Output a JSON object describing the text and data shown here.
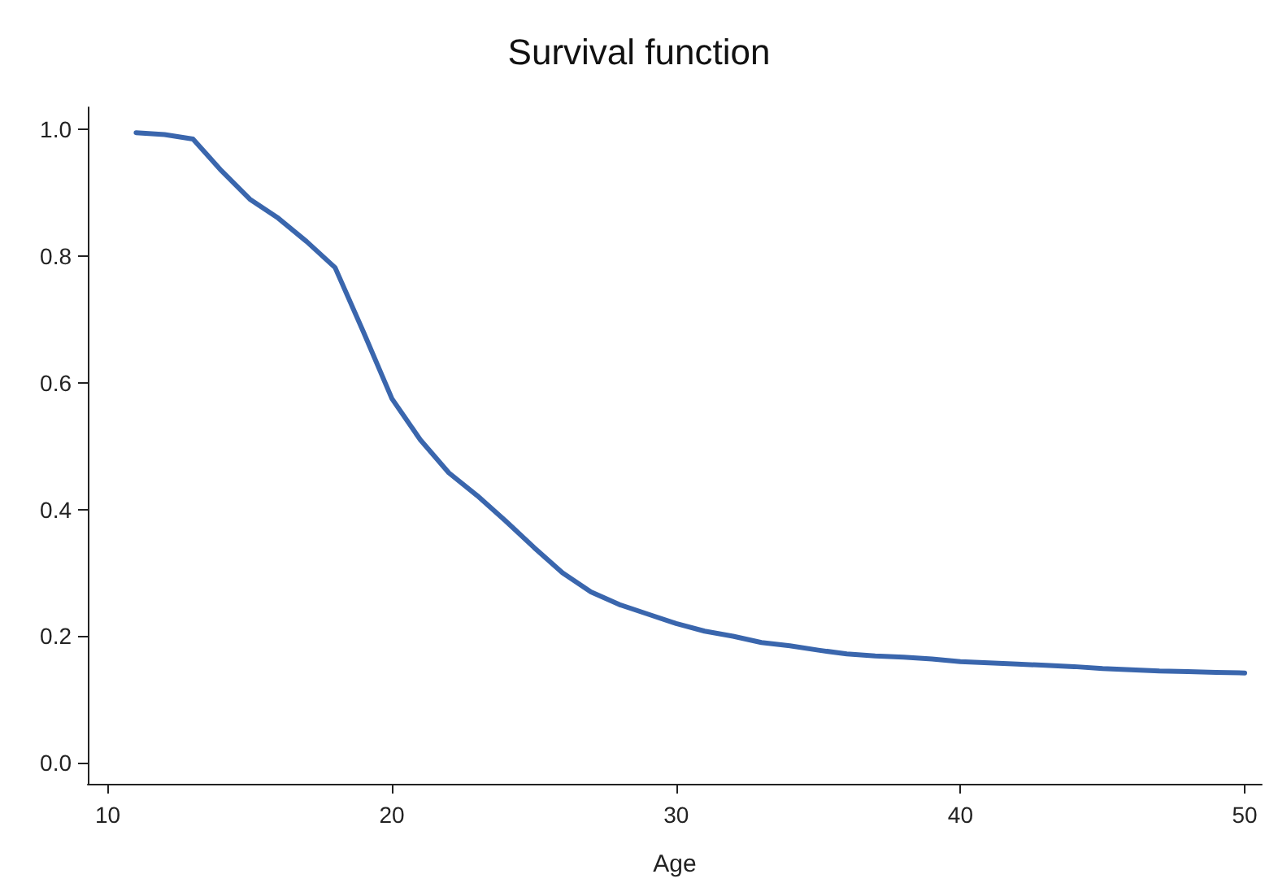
{
  "chart_data": {
    "type": "line",
    "title": "Survival function",
    "xlabel": "Age",
    "x": [
      11,
      12,
      13,
      14,
      15,
      16,
      17,
      18,
      19,
      20,
      21,
      22,
      23,
      24,
      25,
      26,
      27,
      28,
      29,
      30,
      31,
      32,
      33,
      34,
      35,
      36,
      37,
      38,
      39,
      40,
      41,
      42,
      43,
      44,
      45,
      46,
      47,
      48,
      49,
      50
    ],
    "series": [
      {
        "color": "#3a66ad",
        "values": [
          0.995,
          0.992,
          0.985,
          0.935,
          0.89,
          0.86,
          0.823,
          0.782,
          0.68,
          0.575,
          0.51,
          0.458,
          0.422,
          0.382,
          0.34,
          0.3,
          0.27,
          0.25,
          0.235,
          0.22,
          0.208,
          0.2,
          0.19,
          0.185,
          0.178,
          0.172,
          0.169,
          0.167,
          0.164,
          0.16,
          0.158,
          0.156,
          0.154,
          0.152,
          0.149,
          0.147,
          0.145,
          0.144,
          0.143,
          0.142
        ]
      }
    ],
    "xlim": [
      9.3,
      50.6
    ],
    "xticks": [
      10,
      20,
      30,
      40,
      50
    ],
    "ylim": [
      -0.033,
      1.035
    ],
    "yticks": [
      {
        "value": 0,
        "label": "0.0"
      },
      {
        "value": 0.2,
        "label": "0.2"
      },
      {
        "value": 0.4,
        "label": "0.4"
      },
      {
        "value": 0.6,
        "label": "0.6"
      },
      {
        "value": 0.8,
        "label": "0.8"
      },
      {
        "value": 1,
        "label": "1.0"
      }
    ],
    "grid": false,
    "marker": "none",
    "line_style": "solid"
  }
}
